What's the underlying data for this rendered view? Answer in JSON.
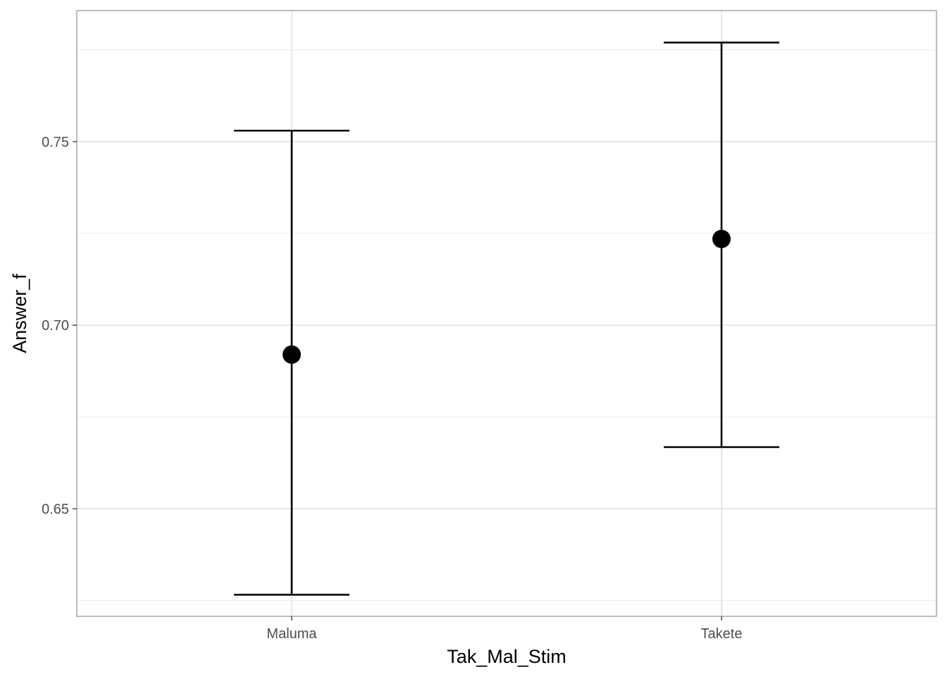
{
  "chart_data": {
    "type": "errorbar",
    "xlabel": "Tak_Mal_Stim",
    "ylabel": "Answer_f",
    "categories": [
      "Maluma",
      "Takete"
    ],
    "series": [
      {
        "points": [
          {
            "x": "Maluma",
            "y": 0.692,
            "ymin": 0.6266,
            "ymax": 0.753
          },
          {
            "x": "Takete",
            "y": 0.7235,
            "ymin": 0.6668,
            "ymax": 0.777
          }
        ]
      }
    ],
    "ylim": [
      0.6207,
      0.7857
    ],
    "y_ticks": [
      0.65,
      0.7,
      0.75
    ],
    "y_tick_labels": [
      "0.65",
      "0.70",
      "0.75"
    ],
    "y_minor_ticks": [
      0.625,
      0.675,
      0.725,
      0.775
    ],
    "grid": true,
    "legend": "none",
    "colors": {
      "mark": "#000000",
      "grid_major": "#d9d9d9",
      "grid_minor": "#ebebeb",
      "panel_border": "#999999"
    }
  }
}
